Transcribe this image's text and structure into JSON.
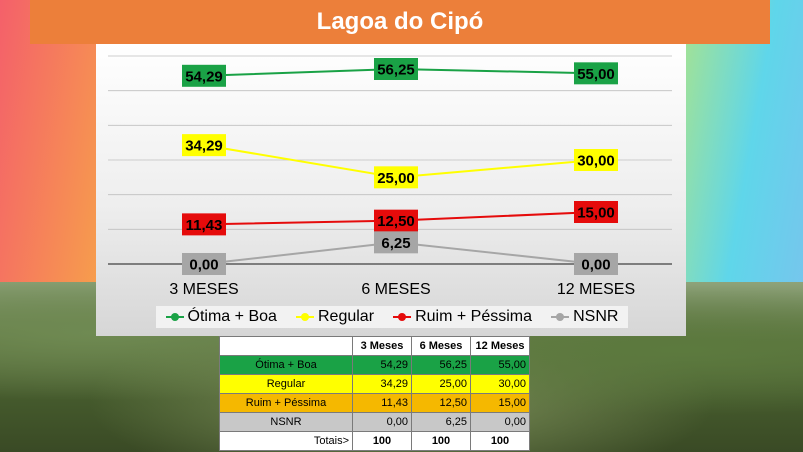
{
  "title": "Lagoa do Cipó",
  "colors": {
    "title_bar": "#ec7f3a",
    "otima": "#1aa246",
    "regular": "#ffff00",
    "ruim": "#e50b0b",
    "nsnr": "#a6a6a6"
  },
  "chart_data": {
    "type": "line",
    "categories": [
      "3 MESES",
      "6 MESES",
      "12 MESES"
    ],
    "series": [
      {
        "name": "Ótima + Boa",
        "values": [
          54.29,
          56.25,
          55.0
        ],
        "labels": [
          "54,29",
          "56,25",
          "55,00"
        ],
        "color": "#1aa246",
        "label_text": "#000000"
      },
      {
        "name": "Regular",
        "values": [
          34.29,
          25.0,
          30.0
        ],
        "labels": [
          "34,29",
          "25,00",
          "30,00"
        ],
        "color": "#ffff00",
        "label_text": "#000000"
      },
      {
        "name": "Ruim + Péssima",
        "values": [
          11.43,
          12.5,
          15.0
        ],
        "labels": [
          "11,43",
          "12,50",
          "15,00"
        ],
        "color": "#e50b0b",
        "label_text": "#000000"
      },
      {
        "name": "NSNR",
        "values": [
          0.0,
          6.25,
          0.0
        ],
        "labels": [
          "0,00",
          "6,25",
          "0,00"
        ],
        "color": "#a6a6a6",
        "label_text": "#000000"
      }
    ],
    "ylim": [
      0,
      60
    ],
    "grid": true,
    "legend_position": "bottom"
  },
  "table": {
    "headers": [
      "",
      "3 Meses",
      "6 Meses",
      "12 Meses"
    ],
    "rows": [
      {
        "label": "Ótima + Boa",
        "bg": "#1aa246",
        "values": [
          "54,29",
          "56,25",
          "55,00"
        ]
      },
      {
        "label": "Regular",
        "bg": "#ffff00",
        "values": [
          "34,29",
          "25,00",
          "30,00"
        ]
      },
      {
        "label": "Ruim + Péssima",
        "bg": "#f5b800",
        "values": [
          "11,43",
          "12,50",
          "15,00"
        ]
      },
      {
        "label": "NSNR",
        "bg": "#c8c8c8",
        "values": [
          "0,00",
          "6,25",
          "0,00"
        ]
      }
    ],
    "totals": {
      "label": "Totais>",
      "values": [
        "100",
        "100",
        "100"
      ]
    }
  }
}
